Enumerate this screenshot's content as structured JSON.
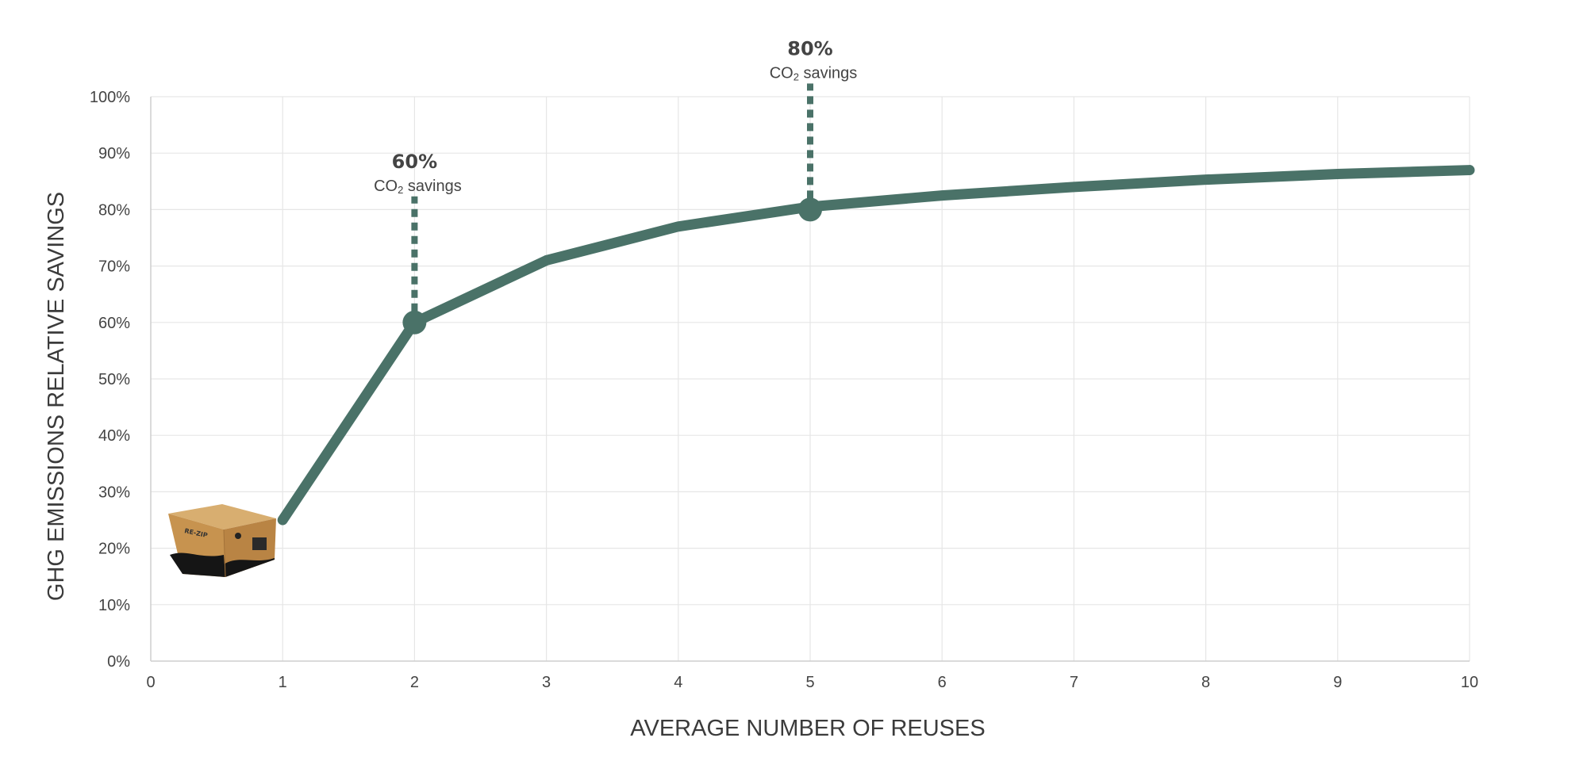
{
  "chart_data": {
    "type": "line",
    "title": "",
    "xlabel": "AVERAGE NUMBER OF REUSES",
    "ylabel": "GHG EMISSIONS RELATIVE SAVINGS",
    "xlim": [
      0,
      10
    ],
    "ylim": [
      0,
      100
    ],
    "x_ticks": [
      0,
      1,
      2,
      3,
      4,
      5,
      6,
      7,
      8,
      9,
      10
    ],
    "x_tick_labels": [
      "0",
      "1",
      "2",
      "3",
      "4",
      "5",
      "6",
      "7",
      "8",
      "9",
      "10"
    ],
    "y_ticks": [
      0,
      10,
      20,
      30,
      40,
      50,
      60,
      70,
      80,
      90,
      100
    ],
    "y_tick_labels": [
      "0%",
      "10%",
      "20%",
      "30%",
      "40%",
      "50%",
      "60%",
      "70%",
      "80%",
      "90%",
      "100%"
    ],
    "grid": true,
    "line_color": "#4a7268",
    "series": [
      {
        "x": [
          1,
          2,
          3,
          4,
          5,
          6,
          7,
          8,
          9,
          10
        ],
        "y": [
          25,
          60,
          71,
          77,
          80.5,
          82.5,
          84,
          85.3,
          86.3,
          87
        ]
      }
    ],
    "annotations": [
      {
        "x": 2,
        "y": 60,
        "value_label": "60%",
        "sub_main": "CO",
        "sub_small": "2",
        "sub_rest": " savings"
      },
      {
        "x": 5,
        "y": 80,
        "value_label": "80%",
        "sub_main": "CO",
        "sub_small": "2",
        "sub_rest": " savings"
      }
    ],
    "illustration": "cardboard-box-icon",
    "illustration_text": "RE-ZIP"
  }
}
